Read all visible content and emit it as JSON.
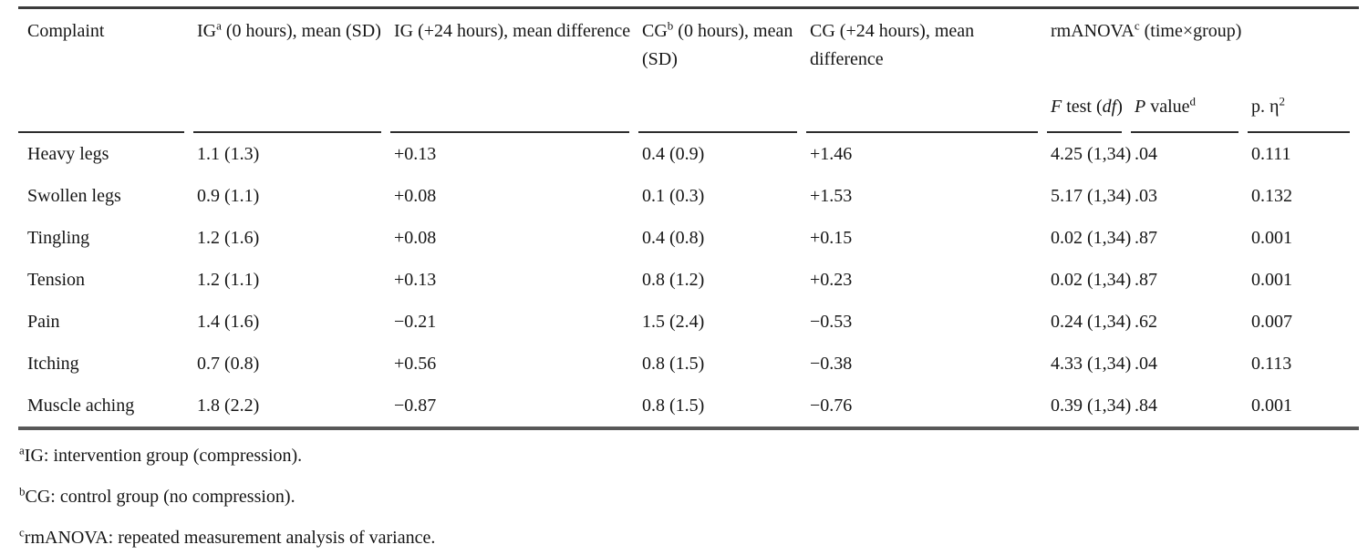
{
  "table": {
    "header": {
      "complaint": "Complaint",
      "ig0": {
        "base": "IG",
        "sup": "a",
        "rest": " (0 hours), mean (SD)"
      },
      "ig24": "IG (+24 hours), mean difference",
      "cg0": {
        "base": "CG",
        "sup": "b",
        "rest": " (0 hours), mean (SD)"
      },
      "cg24": "CG (+24 hours), mean difference",
      "rmanova": {
        "base": "rmANOVA",
        "sup": "c",
        "rest": " (time×group)"
      },
      "f_test": {
        "i1": "F",
        "mid": " test (",
        "i2": "df",
        "end": ")"
      },
      "p_value": {
        "i1": "P",
        "mid": " value",
        "sup": "d"
      },
      "eta": {
        "base": "p. η",
        "sup": "2"
      }
    },
    "rows": [
      {
        "complaint": "Heavy legs",
        "ig0": "1.1 (1.3)",
        "ig24": "+0.13",
        "cg0": "0.4 (0.9)",
        "cg24": "+1.46",
        "f": "4.25 (1,34)",
        "p": ".04",
        "eta": "0.111"
      },
      {
        "complaint": "Swollen legs",
        "ig0": "0.9 (1.1)",
        "ig24": "+0.08",
        "cg0": "0.1 (0.3)",
        "cg24": "+1.53",
        "f": "5.17 (1,34)",
        "p": ".03",
        "eta": "0.132"
      },
      {
        "complaint": "Tingling",
        "ig0": "1.2 (1.6)",
        "ig24": "+0.08",
        "cg0": "0.4 (0.8)",
        "cg24": "+0.15",
        "f": "0.02 (1,34)",
        "p": ".87",
        "eta": "0.001"
      },
      {
        "complaint": "Tension",
        "ig0": "1.2 (1.1)",
        "ig24": "+0.13",
        "cg0": "0.8 (1.2)",
        "cg24": "+0.23",
        "f": "0.02 (1,34)",
        "p": ".87",
        "eta": "0.001"
      },
      {
        "complaint": "Pain",
        "ig0": "1.4 (1.6)",
        "ig24": "−0.21",
        "cg0": "1.5 (2.4)",
        "cg24": "−0.53",
        "f": "0.24 (1,34)",
        "p": ".62",
        "eta": "0.007"
      },
      {
        "complaint": "Itching",
        "ig0": "0.7 (0.8)",
        "ig24": "+0.56",
        "cg0": "0.8 (1.5)",
        "cg24": "−0.38",
        "f": "4.33 (1,34)",
        "p": ".04",
        "eta": "0.113"
      },
      {
        "complaint": "Muscle aching",
        "ig0": "1.8 (2.2)",
        "ig24": "−0.87",
        "cg0": "0.8 (1.5)",
        "cg24": "−0.76",
        "f": "0.39 (1,34)",
        "p": ".84",
        "eta": "0.001"
      }
    ]
  },
  "footnotes": [
    {
      "sup": "a",
      "text": "IG: intervention group (compression)."
    },
    {
      "sup": "b",
      "text": "CG: control group (no compression)."
    },
    {
      "sup": "c",
      "text": "rmANOVA: repeated measurement analysis of variance."
    }
  ]
}
